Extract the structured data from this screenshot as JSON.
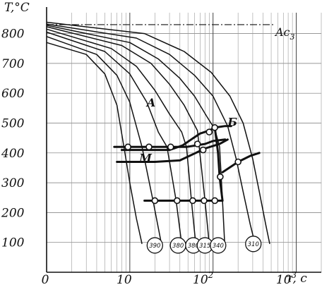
{
  "chart_data": {
    "type": "line",
    "title": "",
    "ylabel": "T,°C",
    "xlabel": "τ, c",
    "x_scale": "log",
    "xlim": [
      1,
      2000
    ],
    "ylim": [
      0,
      870
    ],
    "grid": true,
    "yticks": [
      {
        "value": 100,
        "label": "100"
      },
      {
        "value": 200,
        "label": "200"
      },
      {
        "value": 300,
        "label": "300"
      },
      {
        "value": 400,
        "label": "400"
      },
      {
        "value": 500,
        "label": "500"
      },
      {
        "value": 600,
        "label": "600"
      },
      {
        "value": 700,
        "label": "700"
      },
      {
        "value": 800,
        "label": "800"
      }
    ],
    "xticks": [
      {
        "value": 1,
        "label": "0"
      },
      {
        "value": 10,
        "label": "10"
      },
      {
        "value": 100,
        "label": "10",
        "exponent": "2"
      },
      {
        "value": 1000,
        "label": "10",
        "exponent": "3"
      }
    ],
    "ac3": {
      "label": "Ac",
      "sub": "3",
      "value": 830
    },
    "region_labels": [
      {
        "text": "A",
        "x": 16,
        "y": 555
      },
      {
        "text": "Б",
        "x": 150,
        "y": 490
      },
      {
        "text": "M",
        "x": 13,
        "y": 370
      }
    ],
    "cooling_curves": [
      {
        "points": [
          [
            1,
            770
          ],
          [
            3,
            730
          ],
          [
            5,
            665
          ],
          [
            7,
            560
          ],
          [
            8.5,
            420
          ],
          [
            10,
            300
          ],
          [
            12,
            180
          ],
          [
            14,
            95
          ]
        ]
      },
      {
        "points": [
          [
            1,
            790
          ],
          [
            4,
            730
          ],
          [
            7,
            660
          ],
          [
            10,
            570
          ],
          [
            14,
            420
          ],
          [
            19,
            240
          ],
          [
            24,
            95
          ]
        ]
      },
      {
        "points": [
          [
            1,
            805
          ],
          [
            5,
            740
          ],
          [
            10,
            665
          ],
          [
            16,
            570
          ],
          [
            22,
            470
          ],
          [
            28,
            420
          ],
          [
            36,
            240
          ],
          [
            42,
            95
          ]
        ]
      },
      {
        "points": [
          [
            1,
            815
          ],
          [
            6,
            750
          ],
          [
            12,
            690
          ],
          [
            20,
            610
          ],
          [
            30,
            530
          ],
          [
            42,
            470
          ],
          [
            48,
            420
          ],
          [
            55,
            240
          ],
          [
            62,
            95
          ]
        ]
      },
      {
        "points": [
          [
            1,
            823
          ],
          [
            8,
            760
          ],
          [
            18,
            700
          ],
          [
            30,
            630
          ],
          [
            45,
            560
          ],
          [
            65,
            475
          ],
          [
            80,
            240
          ],
          [
            90,
            95
          ]
        ]
      },
      {
        "points": [
          [
            1,
            828
          ],
          [
            10,
            770
          ],
          [
            22,
            715
          ],
          [
            40,
            650
          ],
          [
            60,
            590
          ],
          [
            85,
            520
          ],
          [
            105,
            480
          ],
          [
            120,
            420
          ],
          [
            130,
            240
          ],
          [
            138,
            95
          ]
        ]
      },
      {
        "points": [
          [
            1,
            832
          ],
          [
            12,
            785
          ],
          [
            30,
            730
          ],
          [
            60,
            660
          ],
          [
            100,
            590
          ],
          [
            150,
            490
          ],
          [
            190,
            380
          ],
          [
            230,
            270
          ],
          [
            280,
            160
          ],
          [
            320,
            95
          ]
        ]
      },
      {
        "points": [
          [
            1,
            838
          ],
          [
            15,
            800
          ],
          [
            45,
            740
          ],
          [
            95,
            670
          ],
          [
            160,
            590
          ],
          [
            230,
            500
          ],
          [
            300,
            380
          ],
          [
            360,
            270
          ],
          [
            430,
            160
          ],
          [
            480,
            95
          ]
        ]
      }
    ],
    "transformation_lines": [
      {
        "points": [
          [
            6.5,
            420
          ],
          [
            30,
            420
          ],
          [
            48,
            420
          ],
          [
            80,
            430
          ],
          [
            100,
            440
          ],
          [
            140,
            445
          ]
        ]
      },
      {
        "points": [
          [
            7,
            370
          ],
          [
            20,
            370
          ],
          [
            40,
            375
          ],
          [
            62,
            400
          ],
          [
            80,
            415
          ],
          [
            120,
            430
          ],
          [
            150,
            445
          ]
        ]
      },
      {
        "points": [
          [
            58,
            450
          ],
          [
            70,
            465
          ],
          [
            90,
            475
          ],
          [
            105,
            485
          ],
          [
            140,
            490
          ],
          [
            165,
            490
          ]
        ]
      },
      {
        "points": [
          [
            8,
            410
          ],
          [
            30,
            410
          ],
          [
            43,
            425
          ],
          [
            58,
            450
          ]
        ]
      },
      {
        "points": [
          [
            105,
            485
          ],
          [
            115,
            400
          ],
          [
            120,
            320
          ],
          [
            130,
            240
          ]
        ]
      },
      {
        "points": [
          [
            130,
            335
          ],
          [
            200,
            370
          ],
          [
            280,
            390
          ],
          [
            360,
            400
          ]
        ]
      },
      {
        "points": [
          [
            15,
            240
          ],
          [
            130,
            240
          ]
        ]
      }
    ],
    "markers": [
      {
        "x": 9.5,
        "y": 420
      },
      {
        "x": 17,
        "y": 420
      },
      {
        "x": 31,
        "y": 420
      },
      {
        "x": 65,
        "y": 430
      },
      {
        "x": 105,
        "y": 485
      },
      {
        "x": 90,
        "y": 470
      },
      {
        "x": 76,
        "y": 410
      },
      {
        "x": 122,
        "y": 320
      },
      {
        "x": 200,
        "y": 370
      },
      {
        "x": 20,
        "y": 240
      },
      {
        "x": 37,
        "y": 240
      },
      {
        "x": 57,
        "y": 240
      },
      {
        "x": 78,
        "y": 240
      },
      {
        "x": 105,
        "y": 240
      }
    ],
    "circled_labels": [
      {
        "text": "390",
        "x": 20,
        "y": 90
      },
      {
        "text": "380",
        "x": 38,
        "y": 90
      },
      {
        "text": "380",
        "x": 58,
        "y": 90
      },
      {
        "text": "315",
        "x": 80,
        "y": 90
      },
      {
        "text": "340",
        "x": 115,
        "y": 90
      },
      {
        "text": "310",
        "x": 305,
        "y": 95
      }
    ]
  }
}
